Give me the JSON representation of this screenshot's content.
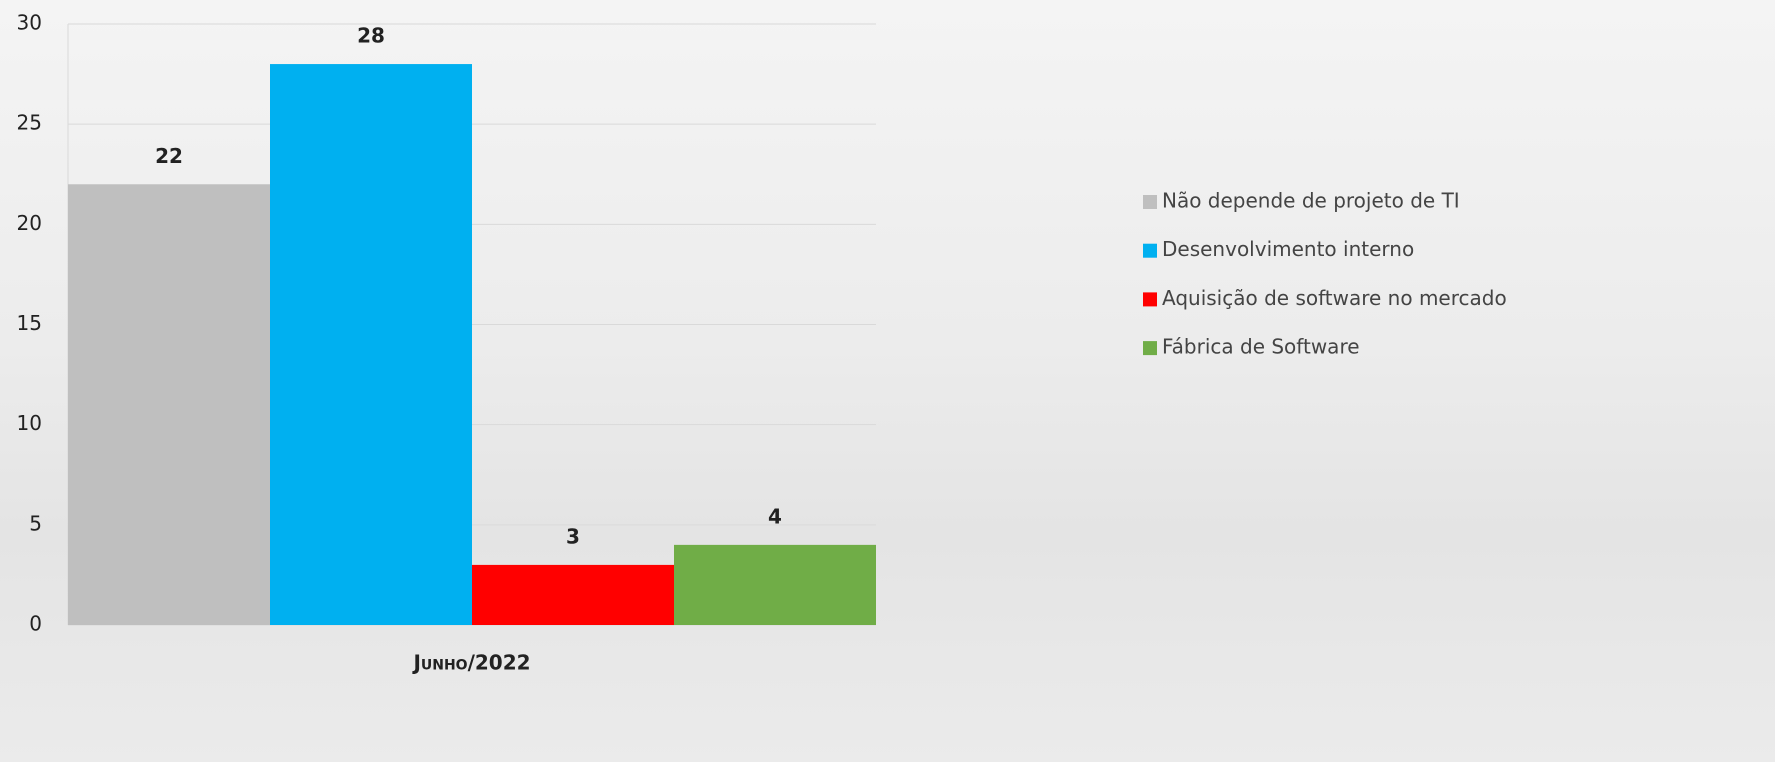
{
  "chart_data": {
    "type": "bar",
    "categories": [
      "Junho/2022"
    ],
    "series": [
      {
        "name": "Não depende de projeto de TI",
        "color": "#bfbfbf",
        "values": [
          22
        ]
      },
      {
        "name": "Desenvolvimento interno",
        "color": "#00b0f0",
        "values": [
          28
        ]
      },
      {
        "name": "Aquisição de software no mercado",
        "color": "#ff0000",
        "values": [
          3
        ]
      },
      {
        "name": "Fábrica de Software",
        "color": "#70ad47",
        "values": [
          4
        ]
      }
    ],
    "ylim": [
      0,
      30
    ],
    "yticks": [
      0,
      5,
      10,
      15,
      20,
      25,
      30
    ],
    "grid": true,
    "legend": "right"
  }
}
